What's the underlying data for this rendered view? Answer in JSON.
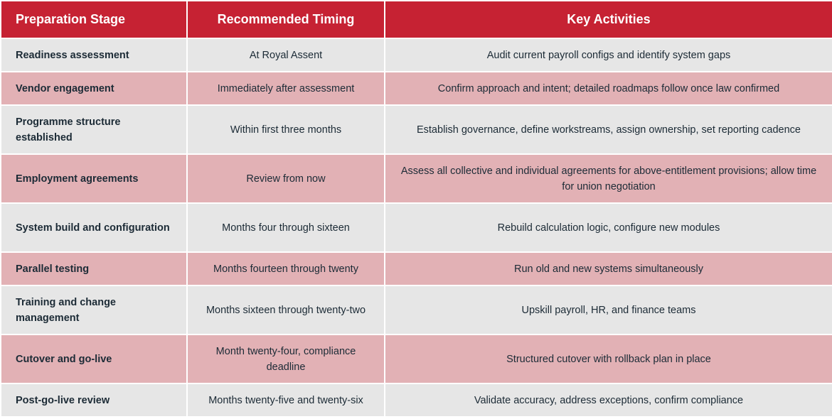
{
  "table": {
    "headers": {
      "stage": "Preparation Stage",
      "timing": "Recommended Timing",
      "activities": "Key Activities"
    },
    "rows": [
      {
        "stage": "Readiness assessment",
        "timing": "At Royal Assent",
        "activities": "Audit current payroll configs and identify system gaps"
      },
      {
        "stage": "Vendor engagement",
        "timing": "Immediately after assessment",
        "activities": "Confirm approach and intent; detailed roadmaps follow once law confirmed"
      },
      {
        "stage": "Programme structure established",
        "timing": "Within first three months",
        "activities": "Establish governance, define workstreams, assign ownership, set reporting cadence"
      },
      {
        "stage": "Employment agreements",
        "timing": "Review from now",
        "activities": "Assess all collective and individual agreements for above-entitlement provisions; allow time for union negotiation"
      },
      {
        "stage": "System build and configuration",
        "timing": "Months four through sixteen",
        "activities": "Rebuild calculation logic, configure new modules"
      },
      {
        "stage": "Parallel testing",
        "timing": "Months fourteen through twenty",
        "activities": "Run old and new systems simultaneously"
      },
      {
        "stage": "Training and change management",
        "timing": "Months sixteen through twenty-two",
        "activities": "Upskill payroll, HR, and finance teams"
      },
      {
        "stage": "Cutover and go-live",
        "timing": "Month twenty-four, compliance deadline",
        "activities": "Structured cutover with rollback plan in place"
      },
      {
        "stage": "Post-go-live review",
        "timing": "Months twenty-five and twenty-six",
        "activities": "Validate accuracy, address exceptions, confirm compliance"
      }
    ]
  },
  "colors": {
    "header_bg": "#c62233",
    "row_light": "#e6e6e6",
    "row_pink": "#e2b1b5",
    "text": "#1c2b36"
  }
}
